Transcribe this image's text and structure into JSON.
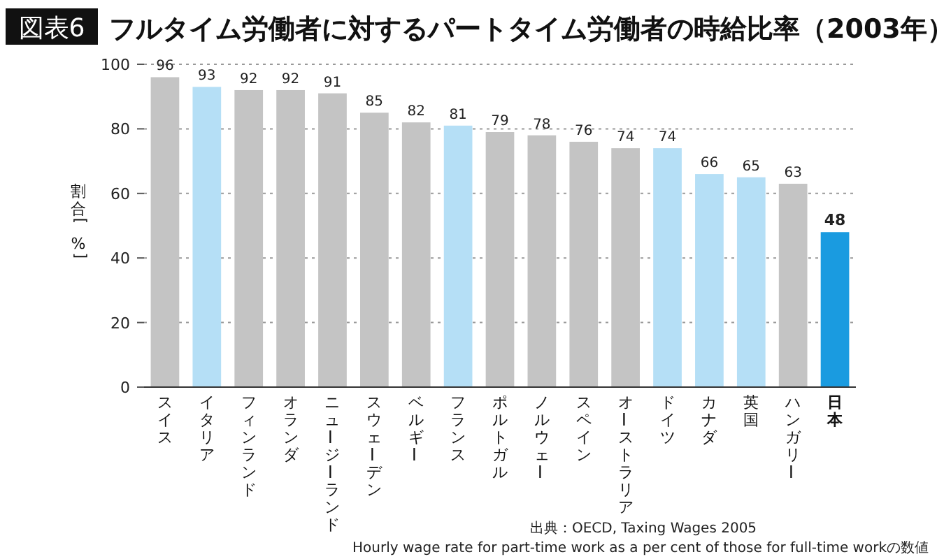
{
  "chart_data": {
    "type": "bar",
    "title": "フルタイム労働者に対するパートタイム労働者の時給比率（2003年）",
    "ylabel": "割合[%]",
    "categories": [
      "スイス",
      "イタリア",
      "フィンランド",
      "オランダ",
      "ニュージーランド",
      "スウェーデン",
      "ベルギー",
      "フランス",
      "ポルトガル",
      "ノルウェー",
      "スペイン",
      "オーストラリア",
      "ドイツ",
      "カナダ",
      "英国",
      "ハンガリー",
      "日本"
    ],
    "values": [
      96,
      93,
      92,
      92,
      91,
      85,
      82,
      81,
      79,
      78,
      76,
      74,
      74,
      66,
      65,
      63,
      48
    ],
    "colors": [
      "#c4c4c4",
      "#b5dff6",
      "#c4c4c4",
      "#c4c4c4",
      "#c4c4c4",
      "#c4c4c4",
      "#c4c4c4",
      "#b5dff6",
      "#c4c4c4",
      "#c4c4c4",
      "#c4c4c4",
      "#c4c4c4",
      "#b5dff6",
      "#b5dff6",
      "#b5dff6",
      "#c4c4c4",
      "#1a9be0"
    ],
    "ylim": [
      0,
      100
    ],
    "yticks": [
      0,
      20,
      40,
      60,
      80,
      100
    ],
    "grid": "y",
    "data_labels": true,
    "annotations": [
      "図表6",
      "出典：OECD, Taxing Wages 2005",
      "Hourly wage rate for part-time work as a per cent of those for full-time workの数値"
    ]
  }
}
